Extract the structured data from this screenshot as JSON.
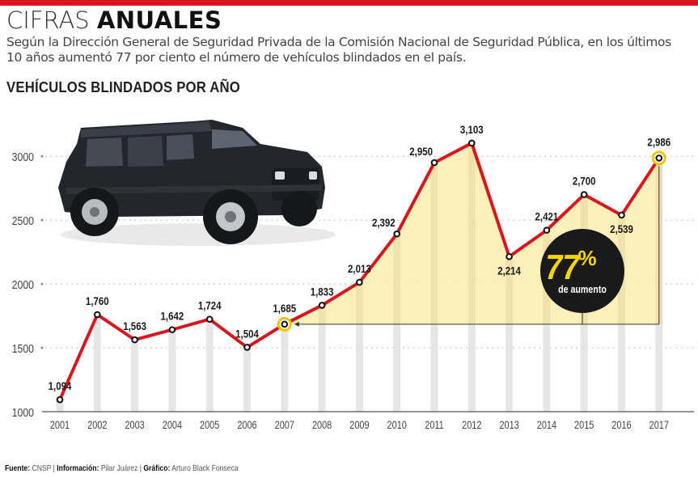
{
  "header": {
    "title_light": "CIFRAS",
    "title_bold": "ANUALES",
    "subtitle_line1": "Según la Dirección General de Seguridad Privada de la Comisión Nacional de Seguridad Pública, en los últimos",
    "subtitle_line2": "10 años aumentó 77 por ciento el número de vehículos blindados en el país.",
    "chart_title": "VEHÍCULOS BLINDADOS POR AÑO"
  },
  "callout": {
    "percent_number": "77",
    "percent_sign": "%",
    "caption": "de aumento"
  },
  "footer": {
    "source_label": "Fuente:",
    "source_value": "CNSP",
    "info_label": "Información:",
    "info_value": "Pilar Juárez",
    "graphic_label": "Gráfico:",
    "graphic_value": "Arturo Black Fonseca",
    "separator": "|"
  },
  "colors": {
    "brand_red": "#d8161f",
    "line_red": "#d8161f",
    "highlight_yellow": "#f5c400",
    "area_fill": "#fcefb4",
    "bar_gray": "#e6e6e6",
    "callout_black": "#1a1a1a"
  },
  "chart_data": {
    "type": "line",
    "title": "VEHÍCULOS BLINDADOS POR AÑO",
    "xlabel": "",
    "ylabel": "",
    "x": [
      "2001",
      "2002",
      "2003",
      "2004",
      "2005",
      "2006",
      "2007",
      "2008",
      "2009",
      "2010",
      "2011",
      "2012",
      "2013",
      "2014",
      "2015",
      "2016",
      "2017"
    ],
    "values": [
      1094,
      1760,
      1563,
      1642,
      1724,
      1504,
      1685,
      1833,
      2013,
      2392,
      2950,
      3103,
      2214,
      2421,
      2700,
      2539,
      2986
    ],
    "data_labels": [
      "1,094",
      "1,760",
      "1,563",
      "1,642",
      "1,724",
      "1,504",
      "1,685",
      "1,833",
      "2,013",
      "2,392",
      "2,950",
      "3,103",
      "2,214",
      "2,421",
      "2,700",
      "2,539",
      "2,986"
    ],
    "label_position": [
      "above",
      "above",
      "above",
      "above",
      "above",
      "above",
      "above",
      "above",
      "above",
      "left",
      "left",
      "above",
      "below",
      "above",
      "above",
      "below",
      "above"
    ],
    "highlighted_points": [
      "2007",
      "2017"
    ],
    "shaded_range": [
      "2007",
      "2017"
    ],
    "ylim": [
      1000,
      3200
    ],
    "yticks": [
      1000,
      1500,
      2000,
      2500,
      3000
    ],
    "ytick_labels": [
      "1000",
      "1500",
      "2000",
      "2500",
      "3000"
    ],
    "grid": "horizontal-dotted",
    "annotation": "77% de aumento"
  }
}
